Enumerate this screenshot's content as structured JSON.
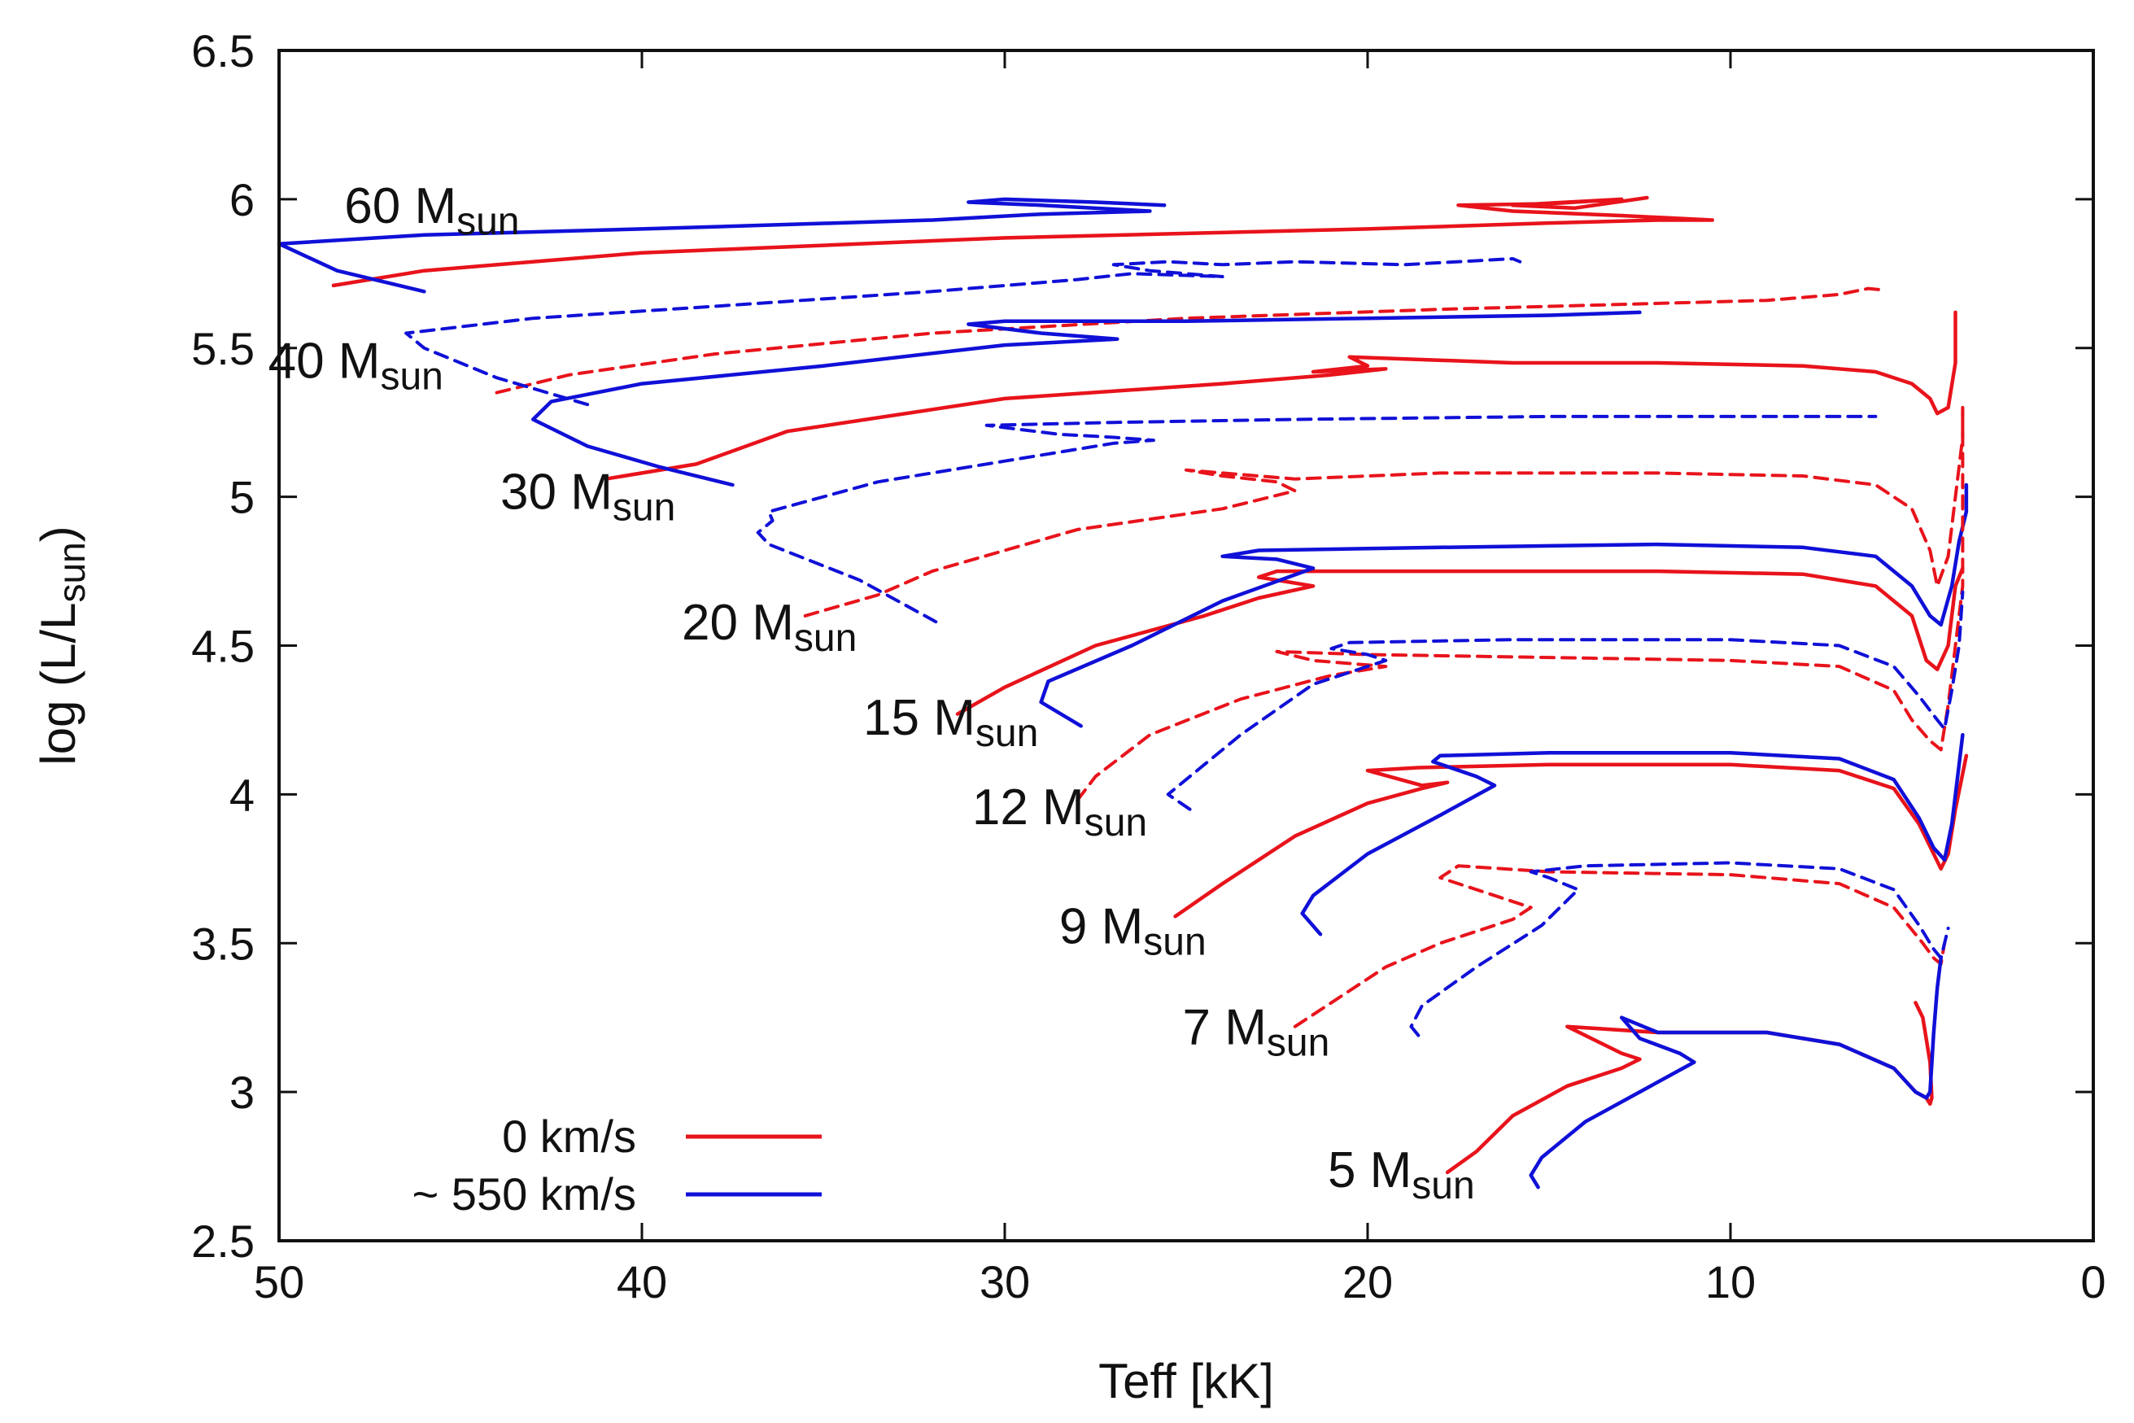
{
  "chart_data": {
    "type": "line",
    "title": "",
    "xlabel": "Teff [kK]",
    "ylabel_main": "log (L/L",
    "ylabel_sub": "sun",
    "ylabel_end": ")",
    "xlim": [
      50,
      0
    ],
    "ylim": [
      2.5,
      6.5
    ],
    "xticks": [
      50,
      40,
      30,
      20,
      10,
      0
    ],
    "yticks": [
      2.5,
      3,
      3.5,
      4,
      4.5,
      5,
      5.5,
      6,
      6.5
    ],
    "xtick_labels": [
      "50",
      "40",
      "30",
      "20",
      "10",
      "0"
    ],
    "ytick_labels": [
      "2.5",
      "3",
      "3.5",
      "4",
      "4.5",
      "5",
      "5.5",
      "6",
      "6.5"
    ],
    "colors": {
      "rot0": "#e8131b",
      "rot550": "#1010d8"
    },
    "legend": {
      "placement": "bottom-left",
      "entries": [
        {
          "label": "0 km/s",
          "color": "#e8131b"
        },
        {
          "label": "~ 550 km/s",
          "color": "#1010d8"
        }
      ]
    },
    "mass_labels": [
      {
        "main": "60 M",
        "sub": "sun",
        "x": 48.2,
        "y": 5.92
      },
      {
        "main": "40 M",
        "sub": "sun",
        "x": 50.3,
        "y": 5.4
      },
      {
        "main": "30 M",
        "sub": "sun",
        "x": 43.9,
        "y": 4.96
      },
      {
        "main": "20 M",
        "sub": "sun",
        "x": 38.9,
        "y": 4.52
      },
      {
        "main": "15 M",
        "sub": "sun",
        "x": 33.9,
        "y": 4.2
      },
      {
        "main": "12 M",
        "sub": "sun",
        "x": 30.9,
        "y": 3.9
      },
      {
        "main": "9 M",
        "sub": "sun",
        "x": 28.5,
        "y": 3.5
      },
      {
        "main": "7 M",
        "sub": "sun",
        "x": 25.1,
        "y": 3.16
      },
      {
        "main": "5 M",
        "sub": "sun",
        "x": 21.1,
        "y": 2.68
      }
    ],
    "series": [
      {
        "name": "60 Msun 0 km/s",
        "color": "#e8131b",
        "dashed": false,
        "x": [
          48.5,
          46,
          40,
          30,
          20,
          15,
          12,
          10.5,
          13,
          16,
          17.5,
          15,
          13,
          14.5,
          16,
          14.3,
          12.3
        ],
        "y": [
          5.71,
          5.76,
          5.82,
          5.87,
          5.9,
          5.92,
          5.93,
          5.93,
          5.945,
          5.96,
          5.98,
          5.985,
          6.0,
          5.99,
          5.98,
          5.97,
          6.005
        ]
      },
      {
        "name": "60 Msun 550 km/s",
        "color": "#1010d8",
        "dashed": false,
        "x": [
          46,
          48.4,
          50,
          46,
          40,
          32,
          29,
          26,
          29,
          31,
          30,
          27.5,
          25.6
        ],
        "y": [
          5.69,
          5.76,
          5.85,
          5.88,
          5.9,
          5.93,
          5.95,
          5.96,
          5.98,
          5.99,
          6.0,
          5.99,
          5.98
        ]
      },
      {
        "name": "40 Msun 0 km/s",
        "color": "#e8131b",
        "dashed": true,
        "x": [
          44,
          42,
          38,
          32,
          25,
          18,
          12,
          9,
          7,
          6.2,
          5.8
        ],
        "y": [
          5.35,
          5.41,
          5.48,
          5.55,
          5.6,
          5.63,
          5.65,
          5.66,
          5.68,
          5.7,
          5.695
        ]
      },
      {
        "name": "40 Msun 550 km/s",
        "color": "#1010d8",
        "dashed": true,
        "x": [
          41.5,
          44,
          46,
          46.5,
          43,
          38,
          32,
          28,
          26.5,
          24,
          26,
          27,
          25.5,
          24,
          22,
          19,
          16,
          15.8
        ],
        "y": [
          5.31,
          5.4,
          5.5,
          5.55,
          5.6,
          5.64,
          5.69,
          5.73,
          5.75,
          5.74,
          5.76,
          5.78,
          5.79,
          5.78,
          5.79,
          5.78,
          5.8,
          5.79
        ]
      },
      {
        "name": "30 Msun 0 km/s",
        "color": "#e8131b",
        "dashed": false,
        "x": [
          41,
          38.5,
          36,
          30,
          24,
          21,
          19.5,
          21.5,
          20,
          20.5,
          16,
          12,
          8,
          6,
          5,
          4.5,
          4.3,
          4,
          3.8,
          3.8,
          3.8
        ],
        "y": [
          5.06,
          5.11,
          5.22,
          5.33,
          5.38,
          5.41,
          5.43,
          5.42,
          5.44,
          5.47,
          5.45,
          5.45,
          5.44,
          5.42,
          5.38,
          5.33,
          5.28,
          5.3,
          5.45,
          5.55,
          5.62
        ]
      },
      {
        "name": "30 Msun 550 km/s",
        "color": "#1010d8",
        "dashed": false,
        "x": [
          37.5,
          39.5,
          41.5,
          43,
          42.5,
          40,
          35,
          30,
          26.9,
          29,
          31,
          30,
          25,
          20,
          15,
          12.5
        ],
        "y": [
          5.04,
          5.1,
          5.17,
          5.26,
          5.32,
          5.38,
          5.44,
          5.51,
          5.53,
          5.55,
          5.58,
          5.59,
          5.59,
          5.6,
          5.61,
          5.62
        ]
      },
      {
        "name": "20 Msun 0 km/s",
        "color": "#e8131b",
        "dashed": true,
        "x": [
          35.5,
          33.5,
          32,
          28,
          24,
          22,
          22.5,
          24,
          25,
          22,
          18,
          12,
          8,
          6,
          5,
          4.5,
          4.3,
          4,
          3.8,
          3.6,
          3.6
        ],
        "y": [
          4.6,
          4.67,
          4.75,
          4.89,
          4.96,
          5.02,
          5.05,
          5.07,
          5.09,
          5.06,
          5.08,
          5.08,
          5.07,
          5.04,
          4.96,
          4.82,
          4.7,
          4.8,
          5.0,
          5.2,
          5.3
        ]
      },
      {
        "name": "20 Msun 550 km/s",
        "color": "#1010d8",
        "dashed": true,
        "x": [
          31.9,
          34,
          36.5,
          36.8,
          36.4,
          36.5,
          33.5,
          30,
          27,
          25.9,
          27,
          28.5,
          30.5,
          27,
          22,
          15,
          10,
          6
        ],
        "y": [
          4.58,
          4.72,
          4.84,
          4.88,
          4.92,
          4.95,
          5.05,
          5.12,
          5.18,
          5.19,
          5.2,
          5.21,
          5.24,
          5.25,
          5.26,
          5.27,
          5.27,
          5.27
        ]
      },
      {
        "name": "15 Msun 0 km/s",
        "color": "#e8131b",
        "dashed": false,
        "x": [
          31.3,
          30,
          27.5,
          24.5,
          23,
          21.5,
          23,
          22.5,
          18,
          12,
          8,
          6,
          5,
          4.6,
          4.3,
          4,
          3.8,
          3.6,
          3.6
        ],
        "y": [
          4.27,
          4.36,
          4.5,
          4.6,
          4.66,
          4.7,
          4.73,
          4.75,
          4.75,
          4.75,
          4.74,
          4.7,
          4.6,
          4.45,
          4.42,
          4.5,
          4.7,
          4.76,
          4.76
        ]
      },
      {
        "name": "15 Msun 550 km/s",
        "color": "#1010d8",
        "dashed": false,
        "x": [
          27.9,
          29,
          28.8,
          26.5,
          24,
          21.5,
          22.5,
          24,
          23,
          18,
          12,
          8,
          6,
          5,
          4.5,
          4.2,
          3.9,
          3.7,
          3.5,
          3.5
        ],
        "y": [
          4.23,
          4.31,
          4.38,
          4.5,
          4.65,
          4.76,
          4.79,
          4.8,
          4.82,
          4.83,
          4.84,
          4.83,
          4.8,
          4.7,
          4.6,
          4.57,
          4.7,
          4.85,
          4.95,
          5.04
        ]
      },
      {
        "name": "12 Msun 0 km/s",
        "color": "#e8131b",
        "dashed": true,
        "x": [
          28,
          27.5,
          26,
          23.5,
          21,
          19.5,
          21.5,
          22.5,
          20,
          15,
          10,
          7,
          5.5,
          5,
          4.5,
          4.2,
          4,
          3.8,
          3.6,
          3.6,
          3.6
        ],
        "y": [
          3.98,
          4.06,
          4.2,
          4.32,
          4.4,
          4.43,
          4.45,
          4.48,
          4.47,
          4.46,
          4.45,
          4.43,
          4.35,
          4.25,
          4.18,
          4.15,
          4.3,
          4.5,
          4.7,
          4.9,
          5.3
        ]
      },
      {
        "name": "12 Msun 550 km/s",
        "color": "#1010d8",
        "dashed": true,
        "x": [
          24.9,
          25.5,
          25.2,
          23.5,
          21.5,
          19.5,
          20,
          21,
          20.5,
          16,
          10,
          7,
          5.5,
          4.8,
          4.3,
          4.1,
          3.9,
          3.7,
          3.6
        ],
        "y": [
          3.95,
          4.0,
          4.03,
          4.2,
          4.37,
          4.45,
          4.47,
          4.49,
          4.51,
          4.52,
          4.52,
          4.5,
          4.43,
          4.33,
          4.25,
          4.22,
          4.35,
          4.5,
          4.68
        ]
      },
      {
        "name": "9 Msun 0 km/s",
        "color": "#e8131b",
        "dashed": false,
        "x": [
          25.3,
          24,
          22,
          20,
          18.5,
          17.8,
          18.5,
          20,
          18.6,
          15,
          10,
          7,
          5.5,
          4.8,
          4.4,
          4.2,
          4.0,
          3.8,
          3.5
        ],
        "y": [
          3.59,
          3.7,
          3.86,
          3.97,
          4.02,
          4.04,
          4.03,
          4.08,
          4.09,
          4.1,
          4.1,
          4.08,
          4.02,
          3.9,
          3.8,
          3.75,
          3.8,
          3.95,
          4.13
        ]
      },
      {
        "name": "9 Msun 550 km/s",
        "color": "#1010d8",
        "dashed": false,
        "x": [
          21.3,
          21.8,
          21.5,
          20,
          18,
          16.5,
          17,
          18.2,
          18,
          15,
          10,
          7,
          5.5,
          4.8,
          4.4,
          4.1,
          3.9,
          3.7,
          3.6
        ],
        "y": [
          3.53,
          3.6,
          3.66,
          3.8,
          3.93,
          4.03,
          4.06,
          4.11,
          4.13,
          4.14,
          4.14,
          4.12,
          4.05,
          3.92,
          3.82,
          3.78,
          3.9,
          4.1,
          4.2
        ]
      },
      {
        "name": "7 Msun 0 km/s",
        "color": "#e8131b",
        "dashed": true,
        "x": [
          22,
          21,
          19.5,
          18,
          16,
          15.5,
          16.5,
          18,
          17.5,
          15,
          10,
          7,
          5.5,
          4.7,
          4.4,
          4.2,
          4.1
        ],
        "y": [
          3.22,
          3.3,
          3.42,
          3.5,
          3.58,
          3.62,
          3.66,
          3.72,
          3.76,
          3.74,
          3.73,
          3.7,
          3.62,
          3.5,
          3.45,
          3.43,
          3.5
        ]
      },
      {
        "name": "7 Msun 550 km/s",
        "color": "#1010d8",
        "dashed": true,
        "x": [
          18.6,
          18.8,
          18.5,
          17,
          15.2,
          14.2,
          15,
          15.5,
          14,
          10,
          7,
          5.5,
          4.8,
          4.4,
          4.2,
          4.0
        ],
        "y": [
          3.19,
          3.22,
          3.29,
          3.42,
          3.56,
          3.68,
          3.72,
          3.74,
          3.76,
          3.77,
          3.75,
          3.68,
          3.56,
          3.48,
          3.45,
          3.55
        ]
      },
      {
        "name": "5 Msun 0 km/s",
        "color": "#e8131b",
        "dashed": false,
        "x": [
          17.8,
          17,
          16,
          14.5,
          13,
          12.5,
          13,
          14.5,
          12,
          9,
          7,
          5.5,
          4.9,
          4.6,
          4.5,
          4.45,
          4.5,
          4.7,
          4.9
        ],
        "y": [
          2.73,
          2.8,
          2.92,
          3.02,
          3.08,
          3.11,
          3.13,
          3.22,
          3.2,
          3.2,
          3.16,
          3.08,
          3.0,
          2.98,
          2.96,
          2.98,
          3.1,
          3.25,
          3.3
        ]
      },
      {
        "name": "5 Msun 550 km/s",
        "color": "#1010d8",
        "dashed": false,
        "x": [
          15.3,
          15.5,
          15.2,
          14,
          12.5,
          11,
          11.4,
          12.5,
          13,
          12,
          9,
          7,
          5.5,
          4.9,
          4.6,
          4.5,
          4.4,
          4.3,
          4.2
        ],
        "y": [
          2.68,
          2.72,
          2.78,
          2.9,
          3.0,
          3.1,
          3.13,
          3.18,
          3.25,
          3.2,
          3.2,
          3.16,
          3.08,
          3.0,
          2.98,
          3.0,
          3.2,
          3.35,
          3.45
        ]
      }
    ]
  }
}
